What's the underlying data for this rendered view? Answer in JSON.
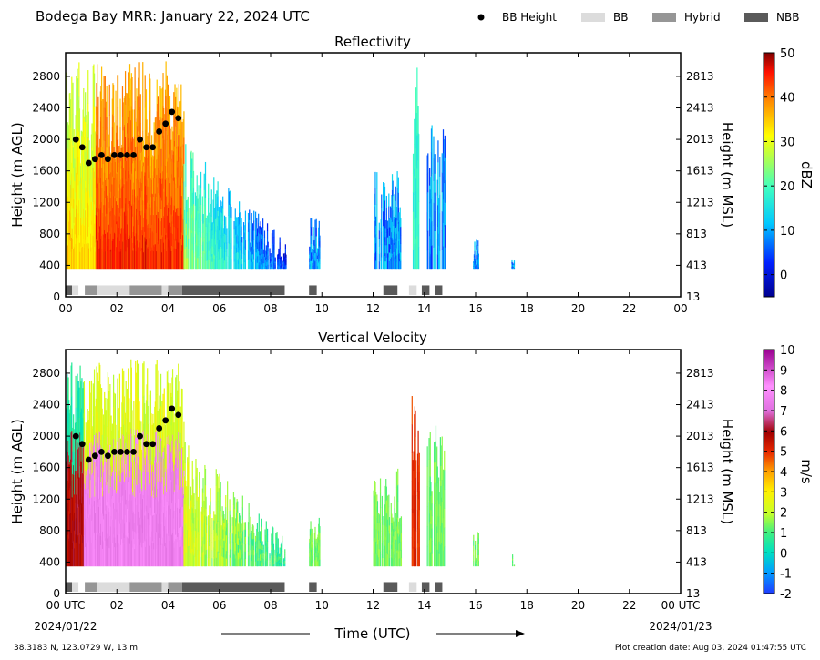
{
  "header": {
    "title": "Bodega Bay MRR:  January 22, 2024 UTC",
    "legend": [
      {
        "label": "BB Height",
        "kind": "dot",
        "color": "#000000"
      },
      {
        "label": "BB",
        "kind": "box",
        "color": "#dcdcdc"
      },
      {
        "label": "Hybrid",
        "kind": "box",
        "color": "#969696"
      },
      {
        "label": "NBB",
        "kind": "box",
        "color": "#5a5a5a"
      }
    ]
  },
  "chart_data": [
    {
      "type": "heatmap",
      "title": "Reflectivity",
      "ylabel": "Height (m AGL)",
      "ylabel_right": "Height (m MSL)",
      "x_ticks": [
        "00",
        "02",
        "04",
        "06",
        "08",
        "10",
        "12",
        "14",
        "16",
        "18",
        "20",
        "22",
        "00"
      ],
      "y_ticks": [
        "0",
        "400",
        "800",
        "1200",
        "1600",
        "2000",
        "2400",
        "2800"
      ],
      "y_ticks_right": [
        "13",
        "413",
        "813",
        "1213",
        "1613",
        "2013",
        "2413",
        "2813"
      ],
      "xlim": [
        0,
        24
      ],
      "ylim": [
        0,
        3100
      ],
      "colorbar": {
        "label": "dBZ",
        "min": -5,
        "max": 50,
        "ticks": [
          "0",
          "10",
          "20",
          "30",
          "40",
          "50"
        ]
      },
      "precip_columns": [
        {
          "start": 0.0,
          "end": 4.6,
          "top": 3000,
          "intensity": "strong"
        },
        {
          "start": 4.6,
          "end": 8.6,
          "top": 2000,
          "intensity": "moderate-decaying"
        },
        {
          "start": 9.5,
          "end": 9.9,
          "top": 1000,
          "intensity": "light"
        },
        {
          "start": 12.0,
          "end": 13.1,
          "top": 1600,
          "intensity": "light"
        },
        {
          "start": 13.5,
          "end": 13.8,
          "top": 2950,
          "intensity": "moderate"
        },
        {
          "start": 14.1,
          "end": 14.8,
          "top": 2200,
          "intensity": "light"
        },
        {
          "start": 15.9,
          "end": 16.1,
          "top": 800,
          "intensity": "light"
        },
        {
          "start": 17.4,
          "end": 17.5,
          "top": 500,
          "intensity": "light"
        }
      ],
      "bb_height_points": [
        {
          "x": 0.4,
          "y": 2000
        },
        {
          "x": 0.65,
          "y": 1900
        },
        {
          "x": 0.9,
          "y": 1700
        },
        {
          "x": 1.15,
          "y": 1750
        },
        {
          "x": 1.4,
          "y": 1800
        },
        {
          "x": 1.65,
          "y": 1750
        },
        {
          "x": 1.9,
          "y": 1800
        },
        {
          "x": 2.15,
          "y": 1800
        },
        {
          "x": 2.4,
          "y": 1800
        },
        {
          "x": 2.65,
          "y": 1800
        },
        {
          "x": 2.9,
          "y": 2000
        },
        {
          "x": 3.15,
          "y": 1900
        },
        {
          "x": 3.4,
          "y": 1900
        },
        {
          "x": 3.65,
          "y": 2100
        },
        {
          "x": 3.9,
          "y": 2200
        },
        {
          "x": 4.15,
          "y": 2350
        },
        {
          "x": 4.4,
          "y": 2270
        }
      ],
      "rain_type_bar": [
        {
          "start": 0.0,
          "end": 0.25,
          "type": "NBB"
        },
        {
          "start": 0.25,
          "end": 0.5,
          "type": "BB"
        },
        {
          "start": 0.75,
          "end": 1.25,
          "type": "Hybrid"
        },
        {
          "start": 1.25,
          "end": 2.5,
          "type": "BB"
        },
        {
          "start": 2.5,
          "end": 3.75,
          "type": "Hybrid"
        },
        {
          "start": 3.75,
          "end": 4.0,
          "type": "BB"
        },
        {
          "start": 4.0,
          "end": 4.55,
          "type": "Hybrid"
        },
        {
          "start": 4.55,
          "end": 8.55,
          "type": "NBB"
        },
        {
          "start": 9.5,
          "end": 9.8,
          "type": "NBB"
        },
        {
          "start": 12.4,
          "end": 12.95,
          "type": "NBB"
        },
        {
          "start": 13.4,
          "end": 13.7,
          "type": "BB"
        },
        {
          "start": 13.9,
          "end": 14.2,
          "type": "NBB"
        },
        {
          "start": 14.4,
          "end": 14.7,
          "type": "NBB"
        }
      ]
    },
    {
      "type": "heatmap",
      "title": "Vertical Velocity",
      "ylabel": "Height (m AGL)",
      "ylabel_right": "Height (m MSL)",
      "x_ticks": [
        "00 UTC",
        "02",
        "04",
        "06",
        "08",
        "10",
        "12",
        "14",
        "16",
        "18",
        "20",
        "22",
        "00 UTC"
      ],
      "y_ticks": [
        "0",
        "400",
        "800",
        "1200",
        "1600",
        "2000",
        "2400",
        "2800"
      ],
      "y_ticks_right": [
        "13",
        "413",
        "813",
        "1213",
        "1613",
        "2013",
        "2413",
        "2813"
      ],
      "xlim": [
        0,
        24
      ],
      "ylim": [
        0,
        3100
      ],
      "colorbar": {
        "label": "m/s",
        "min": -2,
        "max": 10,
        "ticks": [
          "-2",
          "-1",
          "0",
          "1",
          "2",
          "3",
          "4",
          "5",
          "6",
          "7",
          "8",
          "9",
          "10"
        ]
      },
      "precip_columns": [
        {
          "start": 0.0,
          "end": 4.6,
          "top": 3000,
          "intensity": "strong"
        },
        {
          "start": 4.6,
          "end": 8.6,
          "top": 2000,
          "intensity": "moderate-decaying"
        },
        {
          "start": 9.5,
          "end": 9.9,
          "top": 1000,
          "intensity": "light"
        },
        {
          "start": 12.0,
          "end": 13.1,
          "top": 1600,
          "intensity": "light"
        },
        {
          "start": 13.5,
          "end": 13.8,
          "top": 2950,
          "intensity": "moderate"
        },
        {
          "start": 14.1,
          "end": 14.8,
          "top": 2200,
          "intensity": "light"
        },
        {
          "start": 15.9,
          "end": 16.1,
          "top": 800,
          "intensity": "light"
        },
        {
          "start": 17.4,
          "end": 17.5,
          "top": 500,
          "intensity": "light"
        }
      ],
      "bb_height_points": [
        {
          "x": 0.4,
          "y": 2000
        },
        {
          "x": 0.65,
          "y": 1900
        },
        {
          "x": 0.9,
          "y": 1700
        },
        {
          "x": 1.15,
          "y": 1750
        },
        {
          "x": 1.4,
          "y": 1800
        },
        {
          "x": 1.65,
          "y": 1750
        },
        {
          "x": 1.9,
          "y": 1800
        },
        {
          "x": 2.15,
          "y": 1800
        },
        {
          "x": 2.4,
          "y": 1800
        },
        {
          "x": 2.65,
          "y": 1800
        },
        {
          "x": 2.9,
          "y": 2000
        },
        {
          "x": 3.15,
          "y": 1900
        },
        {
          "x": 3.4,
          "y": 1900
        },
        {
          "x": 3.65,
          "y": 2100
        },
        {
          "x": 3.9,
          "y": 2200
        },
        {
          "x": 4.15,
          "y": 2350
        },
        {
          "x": 4.4,
          "y": 2270
        }
      ],
      "rain_type_bar": [
        {
          "start": 0.0,
          "end": 0.25,
          "type": "NBB"
        },
        {
          "start": 0.25,
          "end": 0.5,
          "type": "BB"
        },
        {
          "start": 0.75,
          "end": 1.25,
          "type": "Hybrid"
        },
        {
          "start": 1.25,
          "end": 2.5,
          "type": "BB"
        },
        {
          "start": 2.5,
          "end": 3.75,
          "type": "Hybrid"
        },
        {
          "start": 3.75,
          "end": 4.0,
          "type": "BB"
        },
        {
          "start": 4.0,
          "end": 4.55,
          "type": "Hybrid"
        },
        {
          "start": 4.55,
          "end": 8.55,
          "type": "NBB"
        },
        {
          "start": 9.5,
          "end": 9.8,
          "type": "NBB"
        },
        {
          "start": 12.4,
          "end": 12.95,
          "type": "NBB"
        },
        {
          "start": 13.4,
          "end": 13.7,
          "type": "BB"
        },
        {
          "start": 13.9,
          "end": 14.2,
          "type": "NBB"
        },
        {
          "start": 14.4,
          "end": 14.7,
          "type": "NBB"
        }
      ]
    }
  ],
  "footer": {
    "xlabel": "Time (UTC)",
    "start_date": "2024/01/22",
    "end_date": "2024/01/23",
    "location": "38.3183 N, 123.0729 W, 13 m",
    "creation": "Plot creation date: Aug 03, 2024 01:47:55 UTC"
  }
}
